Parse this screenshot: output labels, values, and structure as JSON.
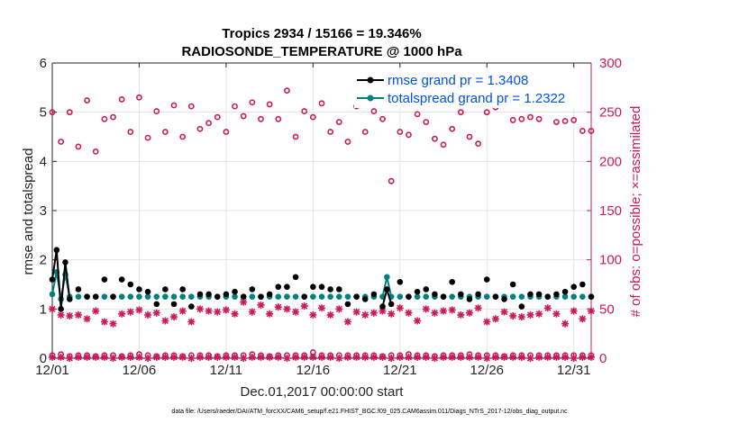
{
  "chart_data": {
    "type": "line",
    "title": "Tropics 2934 / 15166 = 19.346%",
    "subtitle": "RADIOSONDE_TEMPERATURE @ 1000 hPa",
    "xlabel": "Dec.01,2017 00:00:00 start",
    "ylabel_left": "rmse and totalspread",
    "ylabel_right": "# of obs: o=possible; ×=assimilated",
    "xlim": [
      0,
      31
    ],
    "ylim_left": [
      0,
      6
    ],
    "ylim_right": [
      0,
      300
    ],
    "x_tick_values": [
      0,
      5,
      10,
      15,
      20,
      25,
      30
    ],
    "x_tick_labels": [
      "12/01",
      "12/06",
      "12/11",
      "12/16",
      "12/21",
      "12/26",
      "12/31"
    ],
    "y_left_ticks": [
      "0",
      "1",
      "2",
      "3",
      "4",
      "5",
      "6"
    ],
    "y_right_ticks": [
      "0",
      "50",
      "100",
      "150",
      "200",
      "250",
      "300"
    ],
    "legend_position": "top-right",
    "footnote": "data file: /Users/raeder/DAI/ATM_forcXX/CAM6_setup/f.e21.FHIST_BGC.f09_025.CAM6assim.011/Diags_NTrS_2017-12/obs_diag_output.nc",
    "colors": {
      "rmse": "#000000",
      "spread": "#008080",
      "obs": "#cc1a5a",
      "legend_text": "#0052e0"
    },
    "series": [
      {
        "name": "rmse",
        "legend": "rmse grand pr = 1.3408",
        "axis": "left",
        "x": [
          0,
          0.25,
          0.5,
          0.75,
          1,
          1.5,
          2,
          2.5,
          3,
          3.5,
          4,
          4.5,
          5,
          5.5,
          6,
          6.5,
          7,
          7.5,
          8,
          8.5,
          9,
          9.5,
          10,
          10.5,
          11,
          11.5,
          12,
          12.5,
          13,
          13.5,
          14,
          14.5,
          15,
          15.5,
          16,
          16.5,
          17,
          17.5,
          18,
          18.5,
          19,
          19.25,
          19.5,
          20,
          20.5,
          21,
          21.5,
          22,
          22.5,
          23,
          23.5,
          24,
          24.5,
          25,
          25.5,
          26,
          26.5,
          27,
          27.5,
          28,
          28.5,
          29,
          29.5,
          30,
          30.5,
          31
        ],
        "values": [
          1.6,
          2.2,
          1.0,
          1.95,
          1.2,
          1.4,
          1.25,
          1.25,
          1.6,
          1.25,
          1.6,
          1.5,
          1.4,
          1.35,
          1.1,
          1.4,
          1.1,
          1.4,
          1.05,
          1.3,
          1.3,
          1.25,
          1.3,
          1.35,
          1.25,
          1.4,
          1.25,
          1.3,
          1.45,
          1.45,
          1.65,
          1.25,
          1.45,
          1.45,
          1.4,
          1.4,
          1.1,
          1.25,
          1.2,
          1.3,
          1.05,
          1.4,
          1.1,
          1.55,
          1.25,
          1.35,
          1.4,
          1.3,
          1.25,
          1.55,
          1.3,
          1.2,
          1.3,
          1.6,
          1.25,
          1.2,
          1.5,
          1.05,
          1.3,
          1.3,
          1.25,
          1.3,
          1.35,
          1.45,
          1.5,
          1.25
        ]
      },
      {
        "name": "totalspread",
        "legend": "totalspread grand pr = 1.2322",
        "axis": "left",
        "x": [
          0,
          0.25,
          0.5,
          0.75,
          1,
          1.5,
          2,
          2.5,
          3,
          3.5,
          4,
          4.5,
          5,
          5.5,
          6,
          6.5,
          7,
          7.5,
          8,
          8.5,
          9,
          9.5,
          10,
          10.5,
          11,
          11.5,
          12,
          12.5,
          13,
          13.5,
          14,
          14.5,
          15,
          15.5,
          16,
          16.5,
          17,
          17.5,
          18,
          18.5,
          19,
          19.25,
          19.5,
          20,
          20.5,
          21,
          21.5,
          22,
          22.5,
          23,
          23.5,
          24,
          24.5,
          25,
          25.5,
          26,
          26.5,
          27,
          27.5,
          28,
          28.5,
          29,
          29.5,
          30,
          30.5,
          31
        ],
        "values": [
          1.3,
          1.75,
          1.2,
          1.7,
          1.25,
          1.25,
          1.25,
          1.25,
          1.25,
          1.25,
          1.25,
          1.25,
          1.25,
          1.25,
          1.25,
          1.25,
          1.25,
          1.25,
          1.25,
          1.25,
          1.25,
          1.25,
          1.25,
          1.25,
          1.25,
          1.25,
          1.25,
          1.25,
          1.25,
          1.25,
          1.25,
          1.25,
          1.25,
          1.25,
          1.25,
          1.25,
          1.25,
          1.25,
          1.25,
          1.25,
          1.25,
          1.65,
          1.25,
          1.25,
          1.25,
          1.25,
          1.25,
          1.25,
          1.25,
          1.25,
          1.25,
          1.25,
          1.25,
          1.25,
          1.25,
          1.25,
          1.25,
          1.25,
          1.25,
          1.25,
          1.25,
          1.25,
          1.25,
          1.25,
          1.25,
          1.25
        ]
      },
      {
        "name": "possible (upper)",
        "axis": "right",
        "marker": "o",
        "x": [
          0,
          0.5,
          1,
          1.5,
          2,
          2.5,
          3,
          3.5,
          4,
          4.5,
          5,
          5.5,
          6,
          6.5,
          7,
          7.5,
          8,
          8.5,
          9,
          9.5,
          10,
          10.5,
          11,
          11.5,
          12,
          12.5,
          13,
          13.5,
          14,
          14.5,
          15,
          15.5,
          16,
          16.5,
          17,
          17.5,
          18,
          18.5,
          19,
          19.5,
          20,
          20.5,
          21,
          21.5,
          22,
          22.5,
          23,
          23.5,
          24,
          24.5,
          25,
          25.5,
          26,
          26.5,
          27,
          27.5,
          28,
          28.5,
          29,
          29.5,
          30,
          30.5,
          31
        ],
        "values": [
          250,
          220,
          250,
          215,
          262,
          210,
          243,
          245,
          263,
          230,
          265,
          224,
          251,
          230,
          257,
          225,
          256,
          233,
          239,
          245,
          230,
          256,
          246,
          260,
          243,
          258,
          243,
          272,
          225,
          251,
          245,
          259,
          230,
          240,
          220,
          256,
          230,
          251,
          243,
          180,
          230,
          227,
          248,
          240,
          223,
          217,
          233,
          250,
          225,
          218,
          250,
          255,
          260,
          242,
          243,
          245,
          243,
          260,
          240,
          241,
          242,
          231,
          231
        ]
      },
      {
        "name": "possible (lower)",
        "axis": "right",
        "marker": "o",
        "x": [
          0,
          0.5,
          1,
          1.5,
          2,
          2.5,
          3,
          3.5,
          4,
          4.5,
          5,
          5.5,
          6,
          6.5,
          7,
          7.5,
          8,
          8.5,
          9,
          9.5,
          10,
          10.5,
          11,
          11.5,
          12,
          12.5,
          13,
          13.5,
          14,
          14.5,
          15,
          15.5,
          16,
          16.5,
          17,
          17.5,
          18,
          18.5,
          19,
          19.5,
          20,
          20.5,
          21,
          21.5,
          22,
          22.5,
          23,
          23.5,
          24,
          24.5,
          25,
          25.5,
          26,
          26.5,
          27,
          27.5,
          28,
          28.5,
          29,
          29.5,
          30,
          30.5,
          31
        ],
        "values": [
          3,
          4,
          2,
          3,
          3,
          2,
          3,
          3,
          2,
          3,
          4,
          3,
          2,
          3,
          3,
          2,
          3,
          3,
          3,
          2,
          3,
          3,
          3,
          4,
          3,
          2,
          3,
          3,
          3,
          3,
          6,
          3,
          3,
          3,
          3,
          3,
          3,
          3,
          2,
          3,
          3,
          4,
          3,
          3,
          2,
          3,
          3,
          3,
          4,
          3,
          3,
          3,
          2,
          3,
          3,
          3,
          3,
          3,
          3,
          3,
          3,
          3,
          3
        ]
      },
      {
        "name": "assimilated (upper)",
        "axis": "right",
        "marker": "*",
        "x": [
          0,
          0.5,
          1,
          1.5,
          2,
          2.5,
          3,
          3.5,
          4,
          4.5,
          5,
          5.5,
          6,
          6.5,
          7,
          7.5,
          8,
          8.5,
          9,
          9.5,
          10,
          10.5,
          11,
          11.5,
          12,
          12.5,
          13,
          13.5,
          14,
          14.5,
          15,
          15.5,
          16,
          16.5,
          17,
          17.5,
          18,
          18.5,
          19,
          19.5,
          20,
          20.5,
          21,
          21.5,
          22,
          22.5,
          23,
          23.5,
          24,
          24.5,
          25,
          25.5,
          26,
          26.5,
          27,
          27.5,
          28,
          28.5,
          29,
          29.5,
          30,
          30.5,
          31
        ],
        "values": [
          50,
          44,
          43,
          44,
          40,
          48,
          37,
          35,
          45,
          47,
          49,
          44,
          46,
          38,
          42,
          48,
          37,
          50,
          48,
          47,
          49,
          45,
          57,
          47,
          54,
          45,
          52,
          50,
          47,
          53,
          44,
          51,
          44,
          50,
          37,
          47,
          44,
          46,
          48,
          45,
          51,
          46,
          38,
          50,
          46,
          48,
          49,
          44,
          46,
          51,
          37,
          40,
          47,
          43,
          42,
          44,
          45,
          51,
          45,
          35,
          48,
          40,
          48
        ]
      },
      {
        "name": "assimilated (lower)",
        "axis": "right",
        "marker": "*",
        "x": [
          0,
          0.5,
          1,
          1.5,
          2,
          2.5,
          3,
          3.5,
          4,
          4.5,
          5,
          5.5,
          6,
          6.5,
          7,
          7.5,
          8,
          8.5,
          9,
          9.5,
          10,
          10.5,
          11,
          11.5,
          12,
          12.5,
          13,
          13.5,
          14,
          14.5,
          15,
          15.5,
          16,
          16.5,
          17,
          17.5,
          18,
          18.5,
          19,
          19.5,
          20,
          20.5,
          21,
          21.5,
          22,
          22.5,
          23,
          23.5,
          24,
          24.5,
          25,
          25.5,
          26,
          26.5,
          27,
          27.5,
          28,
          28.5,
          29,
          29.5,
          30,
          30.5,
          31
        ],
        "values": [
          1,
          1,
          0,
          1,
          1,
          1,
          1,
          0,
          1,
          1,
          1,
          0,
          1,
          1,
          1,
          1,
          0,
          1,
          1,
          1,
          1,
          1,
          0,
          1,
          1,
          1,
          1,
          0,
          1,
          1,
          1,
          1,
          1,
          0,
          1,
          1,
          1,
          1,
          1,
          0,
          1,
          1,
          1,
          1,
          0,
          1,
          1,
          1,
          1,
          1,
          0,
          1,
          1,
          1,
          1,
          0,
          1,
          1,
          1,
          1,
          0,
          1,
          1
        ]
      }
    ]
  }
}
